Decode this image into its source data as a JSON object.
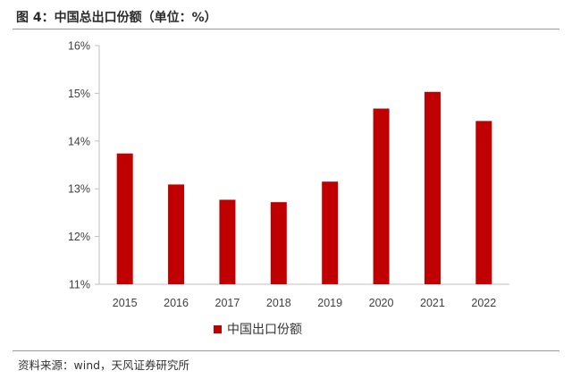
{
  "title": "图 4：中国总出口份额（单位：%）",
  "source": "资料来源：wind，天风证券研究所",
  "chart_data": {
    "type": "bar",
    "title": "图 4：中国总出口份额（单位：%）",
    "categories": [
      "2015",
      "2016",
      "2017",
      "2018",
      "2019",
      "2020",
      "2021",
      "2022"
    ],
    "series": [
      {
        "name": "中国出口份额",
        "values": [
          13.74,
          13.09,
          12.77,
          12.72,
          13.15,
          14.68,
          15.03,
          14.42
        ]
      }
    ],
    "ylim": [
      11,
      16
    ],
    "yticks": [
      "11%",
      "12%",
      "13%",
      "14%",
      "15%",
      "16%"
    ],
    "xlabel": "",
    "ylabel": "",
    "legend_position": "bottom",
    "bar_color": "#c00000"
  }
}
